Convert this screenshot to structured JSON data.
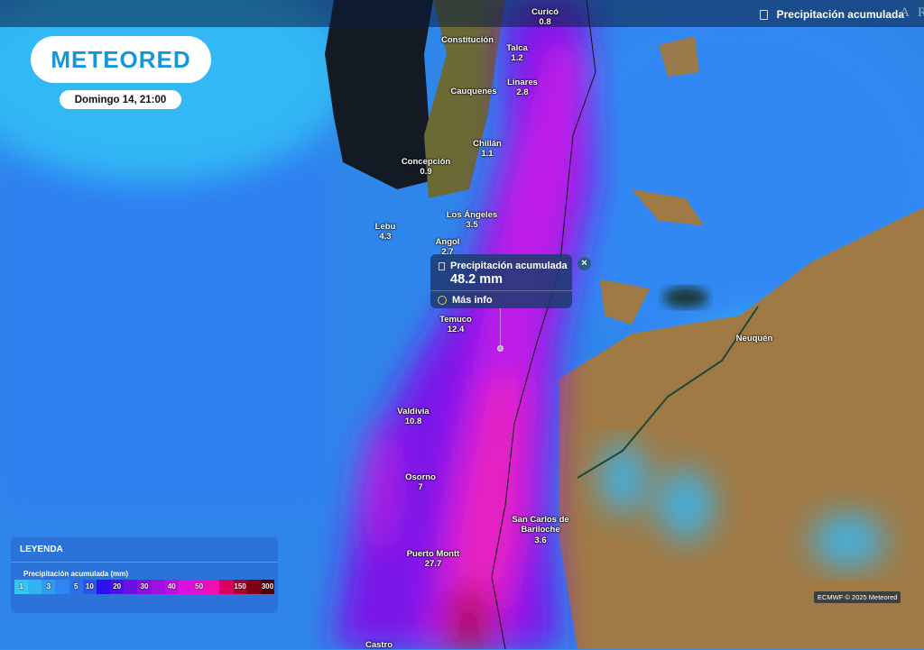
{
  "header": {
    "layer_title": "Precipitación acumulada",
    "overflow_text": "A R"
  },
  "logo": "METEORED",
  "datetime": "Domingo 14, 21:00",
  "cities": [
    {
      "name": "Curicó",
      "value": "0.8"
    },
    {
      "name": "Constitución",
      "value": ""
    },
    {
      "name": "Talca",
      "value": "1.2"
    },
    {
      "name": "Linares",
      "value": "2.8"
    },
    {
      "name": "Cauquenes",
      "value": ""
    },
    {
      "name": "Chillán",
      "value": "1.1"
    },
    {
      "name": "Concepción",
      "value": "0.9"
    },
    {
      "name": "Los Ángeles",
      "value": "3.5"
    },
    {
      "name": "Lebu",
      "value": "4.3"
    },
    {
      "name": "Angol",
      "value": "2.7"
    },
    {
      "name": "Temuco",
      "value": "12.4"
    },
    {
      "name": "Neuquén",
      "value": ""
    },
    {
      "name": "Valdivia",
      "value": "10.8"
    },
    {
      "name": "Osorno",
      "value": "7"
    },
    {
      "name": "San Carlos de",
      "value": "Bariloche"
    },
    {
      "name": "3.6",
      "value": ""
    },
    {
      "name": "Puerto Montt",
      "value": "27.7"
    },
    {
      "name": "Castro",
      "value": ""
    }
  ],
  "popup": {
    "title": "Precipitación acumulada",
    "value": "48.2 mm",
    "more": "Más info",
    "close": "×"
  },
  "legend": {
    "title": "LEYENDA",
    "subtitle": "Precipitación acumulada (mm)",
    "scale": [
      {
        "label": "1",
        "color": "#33c6f0"
      },
      {
        "label": "",
        "color": "#33b4f2"
      },
      {
        "label": "3",
        "color": "#2f9cf0"
      },
      {
        "label": "",
        "color": "#2e86ee"
      },
      {
        "label": "5",
        "color": "#2d70ea"
      },
      {
        "label": "10",
        "color": "#2d55e8"
      },
      {
        "label": "",
        "color": "#2a10ee"
      },
      {
        "label": "20",
        "color": "#4a10e8"
      },
      {
        "label": "",
        "color": "#6a10e0"
      },
      {
        "label": "30",
        "color": "#8a10e0"
      },
      {
        "label": "",
        "color": "#a010e0"
      },
      {
        "label": "40",
        "color": "#c010e0"
      },
      {
        "label": "",
        "color": "#d810e0"
      },
      {
        "label": "50",
        "color": "#e810d0"
      },
      {
        "label": "",
        "color": "#f010b0"
      },
      {
        "label": "",
        "color": "#d80060"
      },
      {
        "label": "150",
        "color": "#b00030"
      },
      {
        "label": "",
        "color": "#800018"
      },
      {
        "label": "300",
        "color": "#500008"
      }
    ]
  },
  "credit": "ECMWF © 2025 Meteored"
}
